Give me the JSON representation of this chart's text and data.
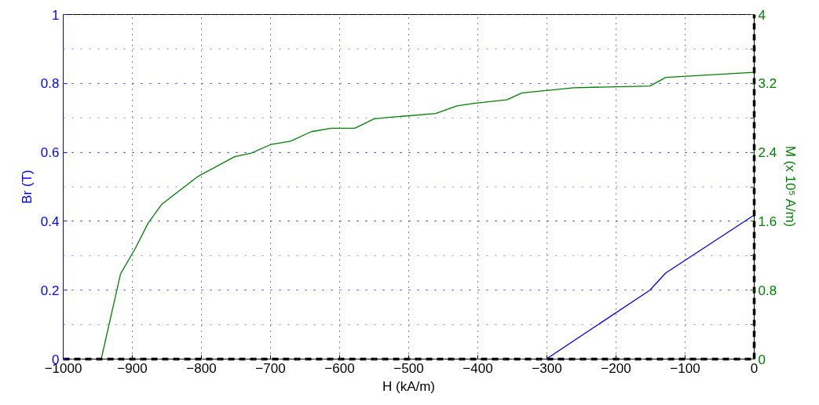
{
  "chart_data": {
    "type": "line",
    "xlabel": "H (kA/m)",
    "ylabel": "Br (T)",
    "y2label": "M (x 10⁵ A/m)",
    "xlim": [
      -1000,
      0
    ],
    "xticks": [
      -1000,
      -900,
      -800,
      -700,
      -600,
      -500,
      -400,
      -300,
      -200,
      -100,
      0
    ],
    "ylim": [
      0,
      1
    ],
    "yticks": [
      0,
      0.2,
      0.4,
      0.6,
      0.8,
      1
    ],
    "y2lim": [
      0,
      4
    ],
    "y2ticks": [
      0,
      {
        "value": 0.4,
        "label": null
      },
      0.8,
      {
        "value": 1.2,
        "label": null
      },
      1.6,
      {
        "value": 2.0,
        "label": null
      },
      2.4,
      {
        "value": 2.8,
        "label": null
      },
      3.2,
      {
        "value": 3.6,
        "label": null
      },
      4
    ],
    "grid": true,
    "line_style": "solid",
    "series": [
      {
        "color": "#0000ff",
        "x": [
          -301,
          -151,
          -128,
          0
        ],
        "values": [
          0,
          0.2,
          0.25,
          0.418
        ]
      },
      {
        "color": "#008000",
        "axis": "y2",
        "x": [
          -945,
          -917,
          -896,
          -877,
          -857,
          -805,
          -752,
          -728,
          -700,
          -671,
          -641,
          -612,
          -578,
          -550,
          -523,
          -461,
          -430,
          -405,
          -358,
          -336,
          -262,
          -151,
          -128,
          0
        ],
        "values": [
          0,
          0.99,
          1.28,
          1.58,
          1.8,
          2.12,
          2.35,
          2.39,
          2.49,
          2.53,
          2.64,
          2.68,
          2.68,
          2.79,
          2.81,
          2.85,
          2.94,
          2.97,
          3.01,
          3.09,
          3.15,
          3.17,
          3.27,
          3.33
        ]
      }
    ]
  }
}
